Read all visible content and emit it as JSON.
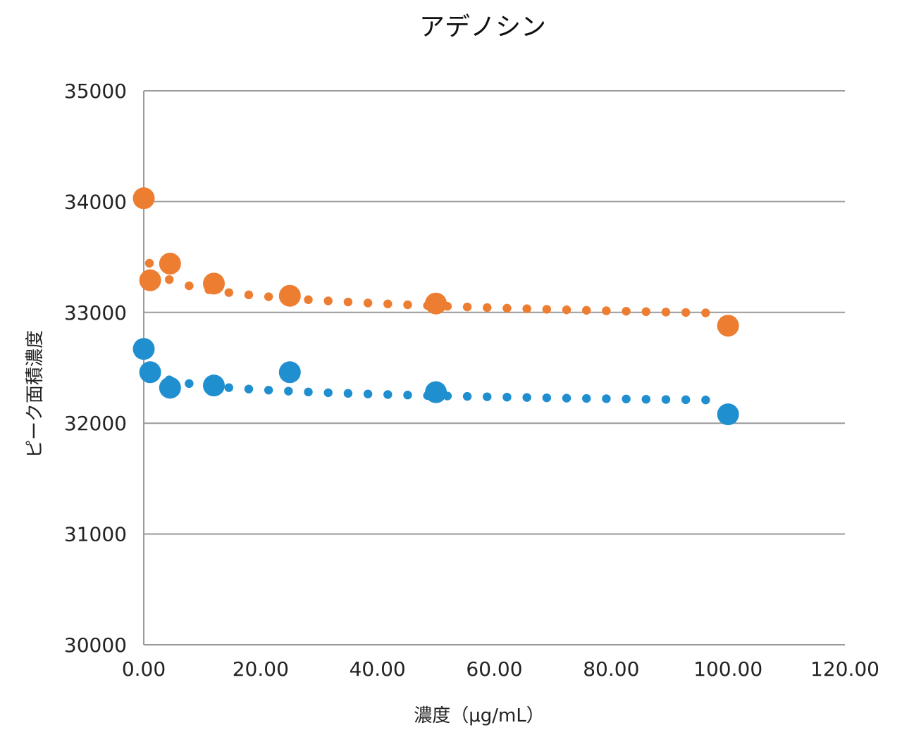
{
  "chart_data": {
    "type": "scatter",
    "title": "アデノシン",
    "xlabel": "濃度（μg/mL）",
    "ylabel": "ピーク面積濃度",
    "xlim": [
      0,
      120
    ],
    "ylim": [
      30000,
      35000
    ],
    "x_ticks": [
      0,
      20,
      40,
      60,
      80,
      100,
      120
    ],
    "x_tick_labels": [
      "0.00",
      "20.00",
      "40.00",
      "60.00",
      "80.00",
      "100.00",
      "120.00"
    ],
    "y_ticks": [
      30000,
      31000,
      32000,
      33000,
      34000,
      35000
    ],
    "y_tick_labels": [
      "30000",
      "31000",
      "32000",
      "33000",
      "34000",
      "35000"
    ],
    "grid": "horizontal",
    "legend": "none",
    "series": [
      {
        "color": "#ED7D31",
        "points": [
          {
            "x": 0,
            "y": 34030
          },
          {
            "x": 1.1,
            "y": 33290
          },
          {
            "x": 4.5,
            "y": 33440
          },
          {
            "x": 12,
            "y": 33260
          },
          {
            "x": 25,
            "y": 33150
          },
          {
            "x": 50,
            "y": 33080
          },
          {
            "x": 100,
            "y": 32880
          }
        ],
        "trendline": {
          "type": "power",
          "style": "dotted"
        }
      },
      {
        "color": "#1F8FD0",
        "points": [
          {
            "x": 0,
            "y": 32670
          },
          {
            "x": 1.1,
            "y": 32460
          },
          {
            "x": 4.5,
            "y": 32320
          },
          {
            "x": 12,
            "y": 32340
          },
          {
            "x": 25,
            "y": 32460
          },
          {
            "x": 50,
            "y": 32280
          },
          {
            "x": 100,
            "y": 32080
          }
        ],
        "trendline": {
          "type": "power",
          "style": "dotted"
        }
      }
    ]
  }
}
